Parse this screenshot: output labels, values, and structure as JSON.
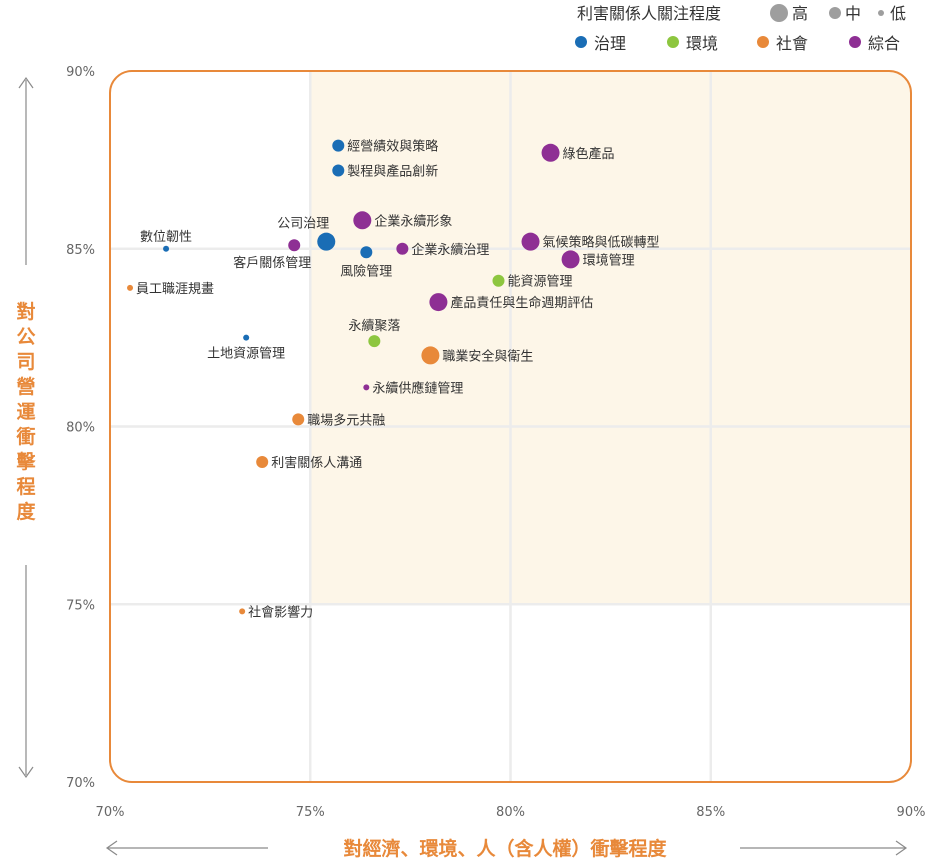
{
  "colors": {
    "governance": "#1a6db5",
    "environment": "#8dc63f",
    "social": "#e8893a",
    "integrated": "#8e2f94",
    "frame": "#e8893a",
    "highlight": "#fdf6e8",
    "grid": "#ececec",
    "size_legend": "#9e9e9e"
  },
  "legend": {
    "size_title": "利害關係人關注程度",
    "size_levels": [
      {
        "label": "高",
        "level": "high"
      },
      {
        "label": "中",
        "level": "medium"
      },
      {
        "label": "低",
        "level": "low"
      }
    ],
    "categories": [
      {
        "key": "governance",
        "label": "治理"
      },
      {
        "key": "environment",
        "label": "環境"
      },
      {
        "key": "social",
        "label": "社會"
      },
      {
        "key": "integrated",
        "label": "綜合"
      }
    ]
  },
  "chart_data": {
    "type": "scatter",
    "title": "",
    "xlabel": "對經濟、環境、人（含人權）衝擊程度",
    "ylabel": "對公司營運衝擊程度",
    "xlim": [
      70,
      90
    ],
    "ylim": [
      70,
      90
    ],
    "x_ticks": [
      "70%",
      "75%",
      "80%",
      "85%",
      "90%"
    ],
    "y_ticks": [
      "70%",
      "75%",
      "80%",
      "85%",
      "90%"
    ],
    "x_tick_values": [
      70,
      75,
      80,
      85,
      90
    ],
    "y_tick_values": [
      70,
      75,
      80,
      85,
      90
    ],
    "highlight_region": {
      "x": [
        75,
        90
      ],
      "y": [
        75,
        90
      ]
    },
    "grid": true,
    "points": [
      {
        "label": "經營績效與策略",
        "x": 75.7,
        "y": 87.9,
        "category": "governance",
        "attention": "medium",
        "label_pos": "right"
      },
      {
        "label": "製程與產品創新",
        "x": 75.7,
        "y": 87.2,
        "category": "governance",
        "attention": "medium",
        "label_pos": "right"
      },
      {
        "label": "綠色產品",
        "x": 81.0,
        "y": 87.7,
        "category": "integrated",
        "attention": "high",
        "label_pos": "right"
      },
      {
        "label": "企業永續形象",
        "x": 76.3,
        "y": 85.8,
        "category": "integrated",
        "attention": "high",
        "label_pos": "right"
      },
      {
        "label": "公司治理",
        "x": 75.4,
        "y": 85.2,
        "category": "governance",
        "attention": "high",
        "label_pos": "above-left"
      },
      {
        "label": "數位韌性",
        "x": 71.4,
        "y": 85.0,
        "category": "governance",
        "attention": "low",
        "label_pos": "above"
      },
      {
        "label": "客戶關係管理",
        "x": 74.6,
        "y": 85.1,
        "category": "integrated",
        "attention": "medium",
        "label_pos": "below-left"
      },
      {
        "label": "風險管理",
        "x": 76.4,
        "y": 84.9,
        "category": "governance",
        "attention": "medium",
        "label_pos": "below"
      },
      {
        "label": "企業永續治理",
        "x": 77.3,
        "y": 85.0,
        "category": "integrated",
        "attention": "medium",
        "label_pos": "right"
      },
      {
        "label": "氣候策略與低碳轉型",
        "x": 80.5,
        "y": 85.2,
        "category": "integrated",
        "attention": "high",
        "label_pos": "right"
      },
      {
        "label": "環境管理",
        "x": 81.5,
        "y": 84.7,
        "category": "integrated",
        "attention": "high",
        "label_pos": "right"
      },
      {
        "label": "能資源管理",
        "x": 79.7,
        "y": 84.1,
        "category": "environment",
        "attention": "medium",
        "label_pos": "right"
      },
      {
        "label": "員工職涯規畫",
        "x": 70.5,
        "y": 83.9,
        "category": "social",
        "attention": "low",
        "label_pos": "right"
      },
      {
        "label": "產品責任與生命週期評估",
        "x": 78.2,
        "y": 83.5,
        "category": "integrated",
        "attention": "high",
        "label_pos": "right"
      },
      {
        "label": "永續聚落",
        "x": 76.6,
        "y": 82.4,
        "category": "environment",
        "attention": "medium",
        "label_pos": "above"
      },
      {
        "label": "土地資源管理",
        "x": 73.4,
        "y": 82.5,
        "category": "governance",
        "attention": "low",
        "label_pos": "below"
      },
      {
        "label": "職業安全與衛生",
        "x": 78.0,
        "y": 82.0,
        "category": "social",
        "attention": "high",
        "label_pos": "right"
      },
      {
        "label": "永續供應鏈管理",
        "x": 76.4,
        "y": 81.1,
        "category": "integrated",
        "attention": "low",
        "label_pos": "right"
      },
      {
        "label": "職場多元共融",
        "x": 74.7,
        "y": 80.2,
        "category": "social",
        "attention": "medium",
        "label_pos": "right"
      },
      {
        "label": "利害關係人溝通",
        "x": 73.8,
        "y": 79.0,
        "category": "social",
        "attention": "medium",
        "label_pos": "right"
      },
      {
        "label": "社會影響力",
        "x": 73.3,
        "y": 74.8,
        "category": "social",
        "attention": "low",
        "label_pos": "right"
      }
    ]
  }
}
